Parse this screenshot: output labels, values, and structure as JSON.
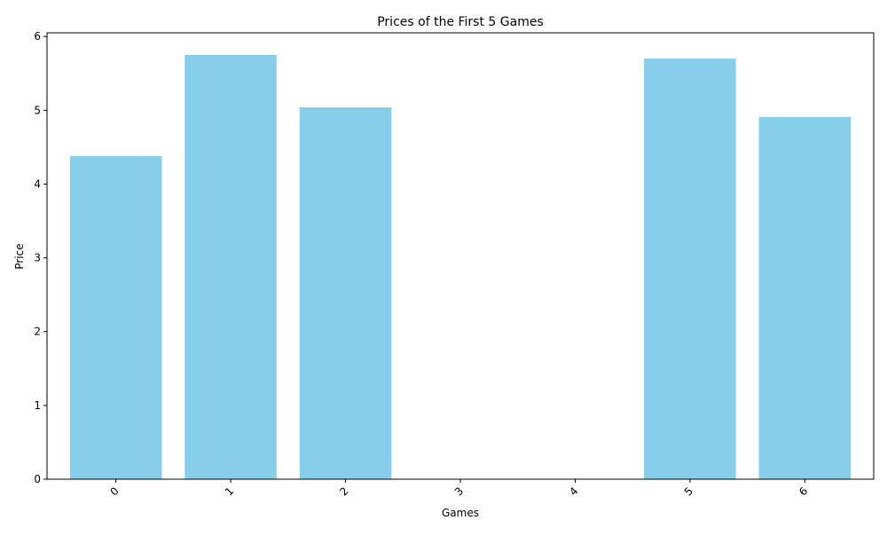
{
  "chart_data": {
    "type": "bar",
    "title": "Prices of the First 5 Games",
    "xlabel": "Games",
    "ylabel": "Price",
    "categories": [
      "0",
      "1",
      "2",
      "3",
      "4",
      "5",
      "6"
    ],
    "values": [
      4.38,
      5.75,
      5.04,
      0,
      0,
      5.7,
      4.91
    ],
    "ylim": [
      0,
      6.05
    ],
    "yticks": [
      0,
      1,
      2,
      3,
      4,
      5,
      6
    ],
    "bar_color": "#87ceeb",
    "grid": false,
    "legend": "none",
    "xtick_rotation": 45
  }
}
